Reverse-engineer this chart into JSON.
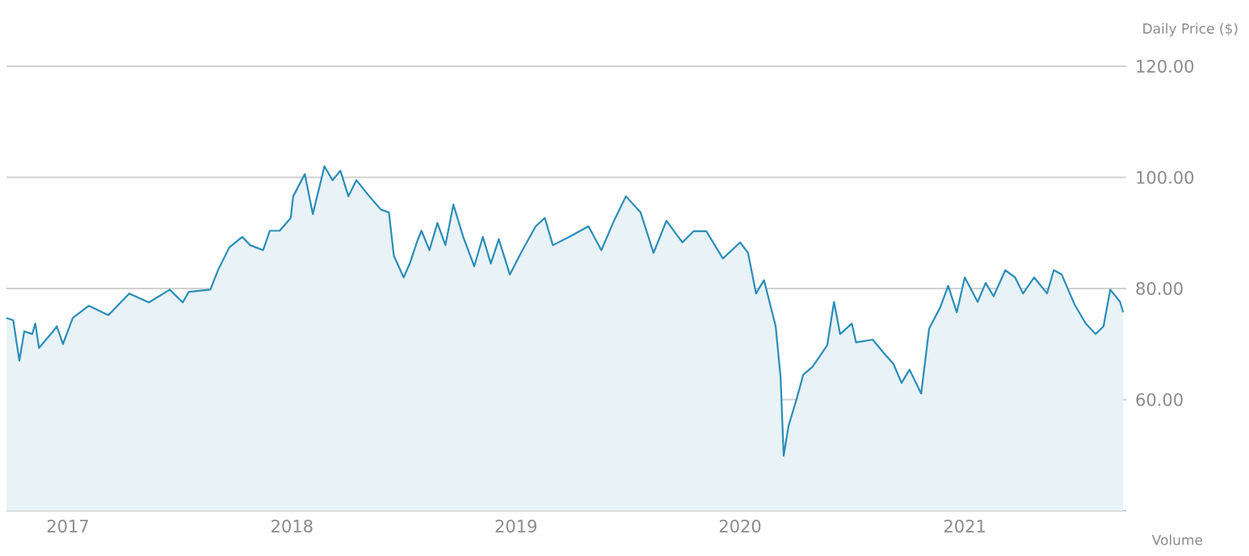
{
  "chart_data": {
    "type": "area",
    "ylabel": "Daily Price ($)",
    "annotations": [
      "Volume"
    ],
    "grid": "y",
    "color": "#2a8db8",
    "xlim": [
      "2016-09-23",
      "2021-09-21"
    ],
    "ylim": [
      40,
      120
    ],
    "xticks": [
      {
        "value": "2017-01-01",
        "label": "2017"
      },
      {
        "value": "2018-01-01",
        "label": "2018"
      },
      {
        "value": "2019-01-01",
        "label": "2019"
      },
      {
        "value": "2020-01-01",
        "label": "2020"
      },
      {
        "value": "2021-01-01",
        "label": "2021"
      }
    ],
    "yticks": [
      {
        "value": 60,
        "label": "60.00"
      },
      {
        "value": 80,
        "label": "80.00"
      },
      {
        "value": 100,
        "label": "100.00"
      },
      {
        "value": 120,
        "label": "120.00"
      }
    ],
    "x": [
      "2016-09-23",
      "2016-10-04",
      "2016-10-14",
      "2016-10-22",
      "2016-11-04",
      "2016-11-09",
      "2016-11-15",
      "2016-12-08",
      "2016-12-14",
      "2016-12-24",
      "2017-01-09",
      "2017-02-04",
      "2017-03-08",
      "2017-04-11",
      "2017-05-13",
      "2017-06-16",
      "2017-07-07",
      "2017-07-17",
      "2017-08-21",
      "2017-09-03",
      "2017-09-21",
      "2017-10-12",
      "2017-10-25",
      "2017-11-15",
      "2017-11-26",
      "2017-12-12",
      "2017-12-30",
      "2018-01-03",
      "2018-01-22",
      "2018-02-04",
      "2018-02-23",
      "2018-03-08",
      "2018-03-21",
      "2018-04-03",
      "2018-04-16",
      "2018-05-07",
      "2018-05-26",
      "2018-06-08",
      "2018-06-16",
      "2018-07-02",
      "2018-07-12",
      "2018-07-25",
      "2018-07-31",
      "2018-08-13",
      "2018-08-26",
      "2018-09-08",
      "2018-09-21",
      "2018-10-07",
      "2018-10-25",
      "2018-11-08",
      "2018-11-21",
      "2018-12-04",
      "2018-12-22",
      "2019-01-09",
      "2019-02-02",
      "2019-02-17",
      "2019-03-02",
      "2019-03-29",
      "2019-04-29",
      "2019-05-20",
      "2019-06-08",
      "2019-06-29",
      "2019-07-23",
      "2019-08-13",
      "2019-09-03",
      "2019-09-29",
      "2019-10-17",
      "2019-11-07",
      "2019-12-04",
      "2020-01-01",
      "2020-01-14",
      "2020-01-27",
      "2020-02-09",
      "2020-02-28",
      "2020-03-07",
      "2020-03-12",
      "2020-03-20",
      "2020-04-02",
      "2020-04-13",
      "2020-04-28",
      "2020-05-22",
      "2020-06-02",
      "2020-06-12",
      "2020-07-01",
      "2020-07-08",
      "2020-08-04",
      "2020-08-22",
      "2020-09-07",
      "2020-09-20",
      "2020-10-03",
      "2020-10-22",
      "2020-11-04",
      "2020-11-22",
      "2020-12-05",
      "2020-12-19",
      "2021-01-01",
      "2021-01-22",
      "2021-02-04",
      "2021-02-17",
      "2021-03-08",
      "2021-03-24",
      "2021-04-06",
      "2021-04-24",
      "2021-05-15",
      "2021-05-26",
      "2021-06-08",
      "2021-06-29",
      "2021-07-17",
      "2021-08-02",
      "2021-08-15",
      "2021-08-26",
      "2021-09-11",
      "2021-09-16"
    ],
    "values": [
      74.7,
      74.3,
      67,
      72.3,
      71.8,
      73.7,
      69.3,
      72.3,
      73.2,
      70,
      74.7,
      76.9,
      75.2,
      79.1,
      77.5,
      79.8,
      77.5,
      79.4,
      79.8,
      83.4,
      87.4,
      89.3,
      87.8,
      86.9,
      90.4,
      90.4,
      92.7,
      96.6,
      100.6,
      93.4,
      102,
      99.5,
      101.2,
      96.6,
      99.5,
      96.6,
      94.2,
      93.7,
      85.9,
      82,
      84.5,
      88.8,
      90.4,
      86.9,
      91.8,
      87.8,
      95.1,
      89.3,
      84,
      89.3,
      84.5,
      88.9,
      82.5,
      86.4,
      91.2,
      92.7,
      87.8,
      89.3,
      91.2,
      86.9,
      91.8,
      96.6,
      93.7,
      86.4,
      92.2,
      88.3,
      90.3,
      90.3,
      85.4,
      88.3,
      86.4,
      79.1,
      81.5,
      73.2,
      64,
      49.9,
      55.3,
      60.1,
      64.5,
      65.9,
      69.8,
      77.6,
      71.8,
      73.7,
      70.3,
      70.8,
      68.4,
      66.4,
      63,
      65.4,
      61.1,
      72.8,
      76.6,
      80.5,
      75.7,
      82,
      77.6,
      81,
      78.6,
      83.3,
      82,
      79.1,
      82,
      79.1,
      83.3,
      82.5,
      77.1,
      73.7,
      71.8,
      73.2,
      79.8,
      77.6,
      75.7
    ]
  }
}
